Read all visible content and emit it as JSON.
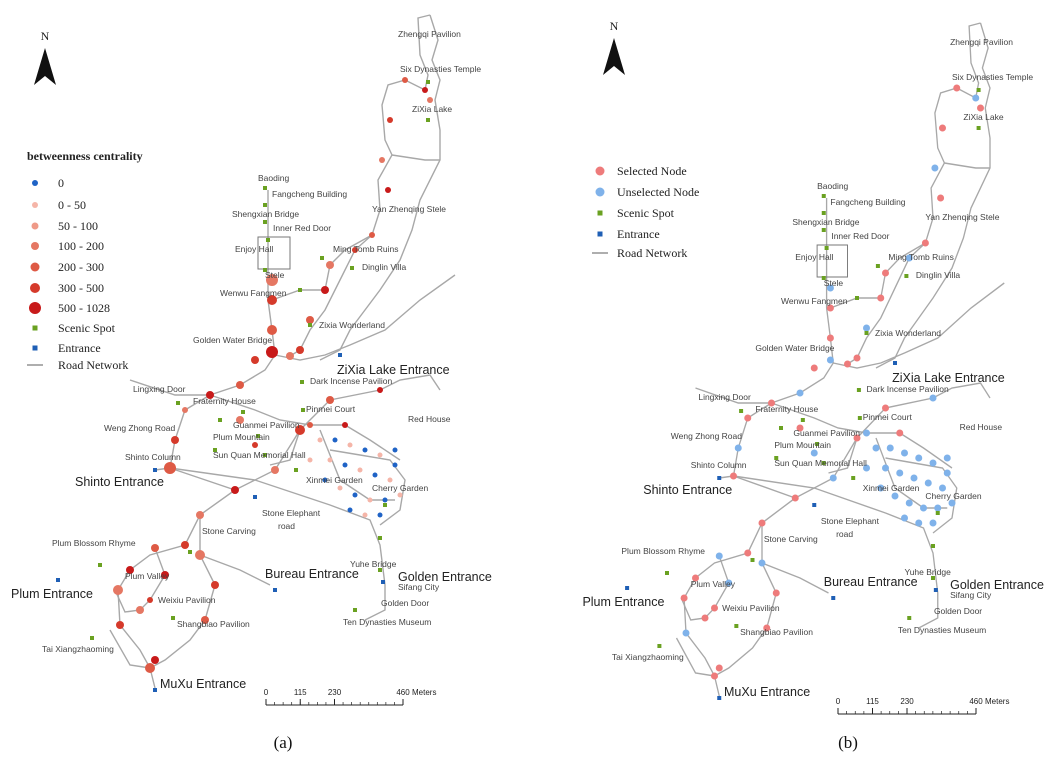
{
  "panels": [
    {
      "caption": "(a)",
      "north": "N",
      "legend": {
        "title": "betweenness centrality",
        "items": [
          "0",
          "0 - 50",
          "50 - 100",
          "100 - 200",
          "200 - 300",
          "300 - 500",
          "500 - 1028",
          "Scenic Spot",
          "Entrance",
          "Road Network"
        ]
      },
      "places": [
        "Zhengqi Pavilion",
        "Six Dynasties Temple",
        "ZiXia Lake",
        "Baoding",
        "Fangcheng Building",
        "Shengxian Bridge",
        "Yan Zhenqing Stele",
        "Inner Red Door",
        "Ming Tomb Ruins",
        "Enjoy Hall",
        "Dinglin Villa",
        "Stele",
        "Wenwu Fangmen",
        "Zixia Wonderland",
        "Golden Water Bridge",
        "Dark Incense Pavilion",
        "Lingxing Door",
        "Fraternity House",
        "Pinmei Court",
        "Red House",
        "Guanmei Pavilion",
        "Weng Zhong Road",
        "Plum Mountain",
        "Sun Quan Memorial Hall",
        "Shinto Column",
        "Xinmei Garden",
        "Cherry Garden",
        "Stone Elephant",
        "road",
        "Stone Carving",
        "Plum Blossom Rhyme",
        "Yuhe Bridge",
        "Sifang City",
        "Plum Valley",
        "Weixiu Pavilion",
        "Golden Door",
        "Shangbiao Pavilion",
        "Ten Dynasties Museum",
        "Tai Xiangzhaoming"
      ],
      "entrances": [
        "ZiXia Lake Entrance",
        "Shinto Entrance",
        "Bureau Entrance",
        "Golden Entrance",
        "Plum Entrance",
        "MuXu Entrance"
      ],
      "scale": {
        "ticks": [
          0,
          115,
          230,
          460
        ],
        "unit": "Meters"
      }
    },
    {
      "caption": "(b)",
      "north": "N",
      "legend": {
        "items": [
          "Selected Node",
          "Unselected Node",
          "Scenic Spot",
          "Entrance",
          "Road Network"
        ]
      },
      "places": [
        "Zhengqi Pavilion",
        "Six Dynasties Temple",
        "ZiXia Lake",
        "Baoding",
        "Fangcheng Building",
        "Shengxian Bridge",
        "Yan Zhenqing Stele",
        "Inner Red Door",
        "Ming Tomb Ruins",
        "Enjoy Hall",
        "Dinglin Villa",
        "Stele",
        "Wenwu Fangmen",
        "Zixia Wonderland",
        "Golden Water Bridge",
        "Dark Incense Pavilion",
        "Lingxing Door",
        "Fraternity House",
        "Pinmei Court",
        "Red House",
        "Guanmei Pavilion",
        "Weng Zhong Road",
        "Plum Mountain",
        "Sun Quan Memorial Hall",
        "Shinto Column",
        "Xinmei Garden",
        "Cherry Garden",
        "Stone Elephant",
        "road",
        "Stone Carving",
        "Plum Blossom Rhyme",
        "Yuhe Bridge",
        "Sifang City",
        "Plum Valley",
        "Weixiu Pavilion",
        "Golden Door",
        "Shangbiao Pavilion",
        "Ten Dynasties Museum",
        "Tai Xiangzhaoming"
      ],
      "entrances": [
        "ZiXia Lake Entrance",
        "Shinto Entrance",
        "Bureau Entrance",
        "Golden Entrance",
        "Plum Entrance",
        "MuXu Entrance"
      ],
      "scale": {
        "ticks": [
          0,
          115,
          230,
          460
        ],
        "unit": "Meters"
      }
    }
  ]
}
